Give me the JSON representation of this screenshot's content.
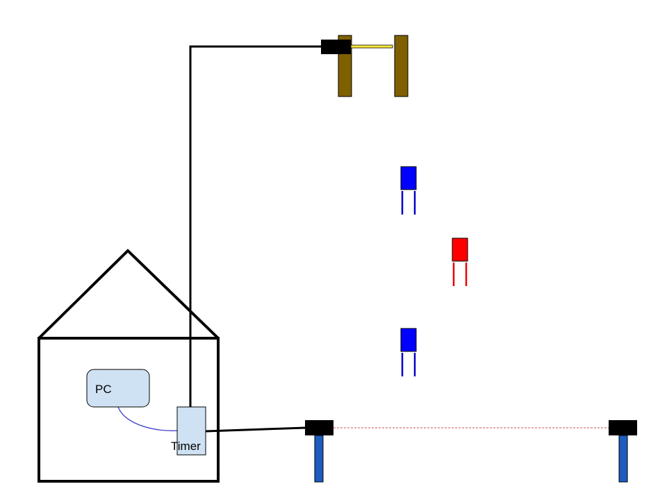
{
  "labels": {
    "pc": "PC",
    "timer": "Timer"
  },
  "colors": {
    "outline": "#000000",
    "device_fill": "#cfe2f3",
    "post_brown": "#7f6000",
    "gate_bar": "#ffeb3b",
    "stand_blue": "#1c5dbf",
    "gate_blue": "#0000ff",
    "gate_red": "#ff0000",
    "data_link": "#3333cc",
    "light_beam": "#c0504d"
  },
  "icons": {
    "house": "house-outline",
    "sensor": "photo-sensor-block",
    "gate": "slalom-gate"
  }
}
